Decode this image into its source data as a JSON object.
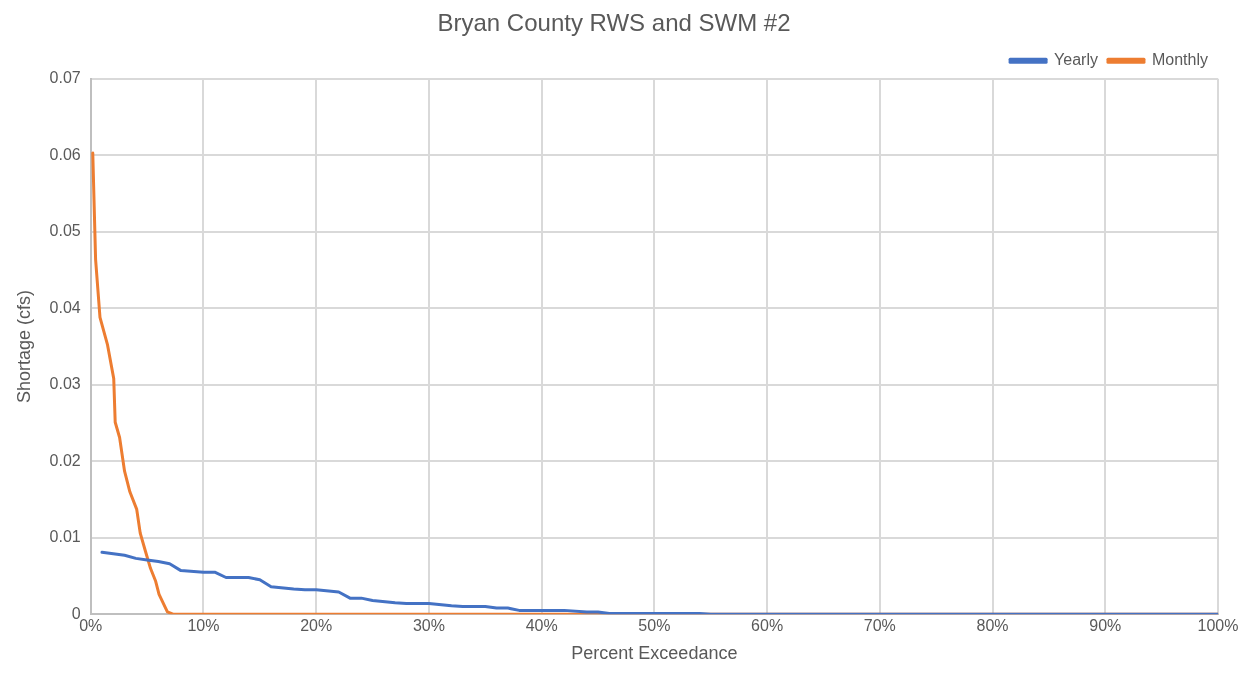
{
  "chart_data": {
    "type": "line",
    "title": "Bryan County RWS and SWM #2",
    "xlabel": "Percent Exceedance",
    "ylabel": "Shortage (cfs)",
    "xlim": [
      0,
      100
    ],
    "xticks": [
      {
        "value": 0,
        "label": "0%"
      },
      {
        "value": 10,
        "label": "10%"
      },
      {
        "value": 20,
        "label": "20%"
      },
      {
        "value": 30,
        "label": "30%"
      },
      {
        "value": 40,
        "label": "40%"
      },
      {
        "value": 50,
        "label": "50%"
      },
      {
        "value": 60,
        "label": "60%"
      },
      {
        "value": 70,
        "label": "70%"
      },
      {
        "value": 80,
        "label": "80%"
      },
      {
        "value": 90,
        "label": "90%"
      },
      {
        "value": 100,
        "label": "100%"
      }
    ],
    "ylim": [
      0,
      0.07
    ],
    "yticks": [
      {
        "value": 0,
        "label": "0"
      },
      0.01,
      0.02,
      0.03,
      0.04,
      0.05,
      0.06,
      0.07
    ],
    "grid": true,
    "legend": "top right",
    "marker": "none",
    "line_style": "solid",
    "series": [
      {
        "name": "Yearly",
        "color": "#4472c4",
        "x": [
          1,
          2,
          3,
          4,
          5,
          6,
          7,
          8,
          10,
          11,
          12,
          14,
          15,
          16,
          18,
          19,
          20,
          22,
          23,
          24,
          25,
          27,
          28,
          30,
          32,
          33,
          35,
          36,
          37,
          38,
          42,
          44,
          45,
          46,
          54,
          55,
          100
        ],
        "values": [
          0.0081,
          0.0079,
          0.0077,
          0.0073,
          0.0071,
          0.0069,
          0.0066,
          0.0057,
          0.0055,
          0.0055,
          0.0048,
          0.0048,
          0.0045,
          0.0036,
          0.0033,
          0.0032,
          0.0032,
          0.0029,
          0.0021,
          0.0021,
          0.0018,
          0.0015,
          0.0014,
          0.0014,
          0.0011,
          0.001,
          0.001,
          0.0008,
          0.0008,
          0.0005,
          0.0005,
          0.0003,
          0.0003,
          0.0001,
          0.0001,
          0,
          0
        ]
      },
      {
        "name": "Monthly",
        "color": "#ed7d31",
        "x": [
          0.18,
          0.43,
          0.82,
          1.49,
          2.04,
          2.17,
          2.56,
          3.0,
          3.47,
          4.08,
          4.39,
          4.84,
          5.3,
          5.76,
          6.06,
          6.8,
          7.3,
          100
        ],
        "values": [
          0.0603,
          0.0464,
          0.0388,
          0.0352,
          0.0308,
          0.0251,
          0.0231,
          0.0187,
          0.016,
          0.0137,
          0.0106,
          0.0083,
          0.006,
          0.0043,
          0.0026,
          0.0003,
          0,
          0
        ]
      }
    ]
  }
}
